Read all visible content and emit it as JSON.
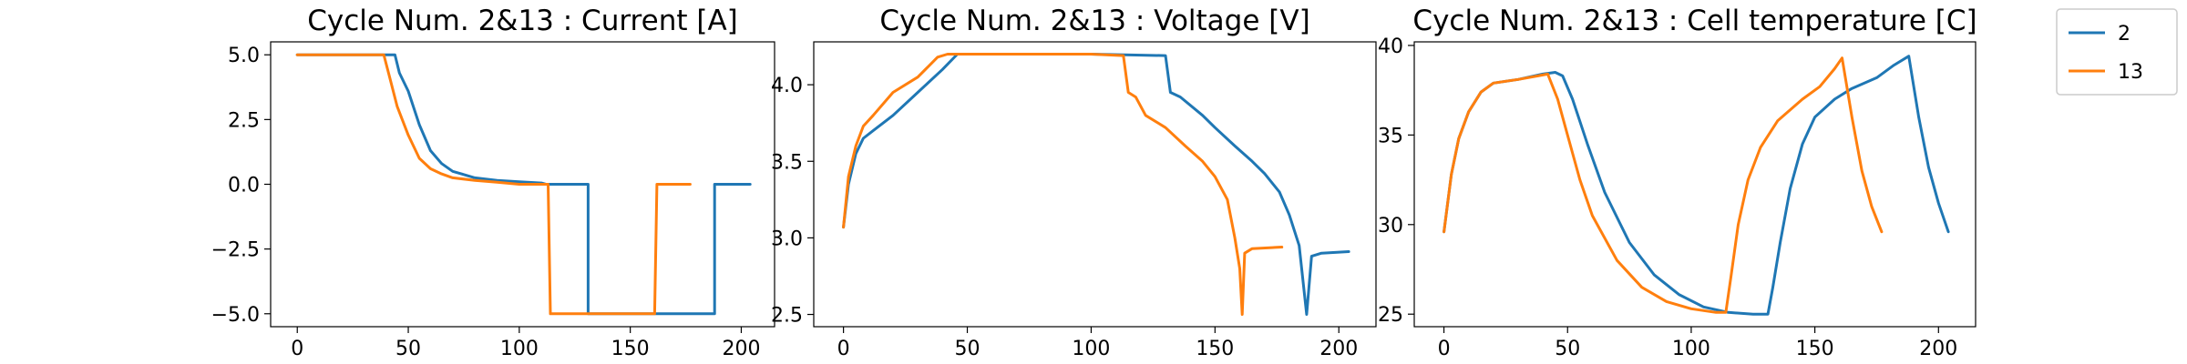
{
  "legend": {
    "items": [
      {
        "label": "2",
        "color": "#1f77b4"
      },
      {
        "label": "13",
        "color": "#ff7f0e"
      }
    ]
  },
  "chart_data": [
    {
      "type": "line",
      "title": "Cycle Num. 2&13 : Current [A]",
      "xlim": [
        -12,
        215
      ],
      "ylim": [
        -5.5,
        5.5
      ],
      "xticks": [
        0,
        50,
        100,
        150,
        200
      ],
      "yticks": [
        5.0,
        2.5,
        0.0,
        -2.5,
        -5.0
      ],
      "ytick_labels": [
        "5.0",
        "2.5",
        "0.0",
        "−2.5",
        "−5.0"
      ],
      "xtick_labels": [
        "0",
        "50",
        "100",
        "150",
        "200"
      ],
      "series": [
        {
          "name": "2",
          "color": "#1f77b4",
          "points": [
            [
              0,
              5.0
            ],
            [
              44,
              5.0
            ],
            [
              46,
              4.3
            ],
            [
              50,
              3.6
            ],
            [
              55,
              2.3
            ],
            [
              60,
              1.3
            ],
            [
              65,
              0.8
            ],
            [
              70,
              0.5
            ],
            [
              80,
              0.25
            ],
            [
              90,
              0.15
            ],
            [
              100,
              0.1
            ],
            [
              110,
              0.05
            ],
            [
              112,
              0.0
            ],
            [
              131,
              0.0
            ],
            [
              131,
              -5.0
            ],
            [
              188,
              -5.0
            ],
            [
              188,
              0.0
            ],
            [
              204,
              0.0
            ]
          ]
        },
        {
          "name": "13",
          "color": "#ff7f0e",
          "points": [
            [
              0,
              5.0
            ],
            [
              39,
              5.0
            ],
            [
              42,
              4.0
            ],
            [
              45,
              3.0
            ],
            [
              50,
              1.9
            ],
            [
              55,
              1.0
            ],
            [
              60,
              0.6
            ],
            [
              65,
              0.4
            ],
            [
              70,
              0.25
            ],
            [
              80,
              0.15
            ],
            [
              90,
              0.08
            ],
            [
              100,
              0.0
            ],
            [
              113,
              0.0
            ],
            [
              114,
              -5.0
            ],
            [
              161,
              -5.0
            ],
            [
              162,
              0.0
            ],
            [
              177,
              0.0
            ]
          ]
        }
      ]
    },
    {
      "type": "line",
      "title": "Cycle Num. 2&13 : Voltage [V]",
      "xlim": [
        -12,
        215
      ],
      "ylim": [
        2.42,
        4.28
      ],
      "xticks": [
        0,
        50,
        100,
        150,
        200
      ],
      "yticks": [
        4.0,
        3.5,
        3.0,
        2.5
      ],
      "ytick_labels": [
        "4.0",
        "3.5",
        "3.0",
        "2.5"
      ],
      "xtick_labels": [
        "0",
        "50",
        "100",
        "150",
        "200"
      ],
      "series": [
        {
          "name": "2",
          "color": "#1f77b4",
          "points": [
            [
              0,
              3.07
            ],
            [
              2,
              3.35
            ],
            [
              5,
              3.55
            ],
            [
              8,
              3.65
            ],
            [
              12,
              3.7
            ],
            [
              20,
              3.8
            ],
            [
              30,
              3.95
            ],
            [
              40,
              4.1
            ],
            [
              46,
              4.2
            ],
            [
              100,
              4.2
            ],
            [
              130,
              4.19
            ],
            [
              132,
              3.95
            ],
            [
              136,
              3.92
            ],
            [
              145,
              3.8
            ],
            [
              150,
              3.72
            ],
            [
              158,
              3.6
            ],
            [
              165,
              3.5
            ],
            [
              170,
              3.42
            ],
            [
              176,
              3.3
            ],
            [
              180,
              3.15
            ],
            [
              184,
              2.95
            ],
            [
              187,
              2.5
            ],
            [
              189,
              2.88
            ],
            [
              193,
              2.9
            ],
            [
              204,
              2.91
            ]
          ]
        },
        {
          "name": "13",
          "color": "#ff7f0e",
          "points": [
            [
              0,
              3.07
            ],
            [
              2,
              3.4
            ],
            [
              5,
              3.6
            ],
            [
              8,
              3.73
            ],
            [
              12,
              3.8
            ],
            [
              20,
              3.95
            ],
            [
              30,
              4.05
            ],
            [
              38,
              4.18
            ],
            [
              42,
              4.2
            ],
            [
              100,
              4.2
            ],
            [
              113,
              4.19
            ],
            [
              115,
              3.95
            ],
            [
              118,
              3.92
            ],
            [
              122,
              3.8
            ],
            [
              130,
              3.72
            ],
            [
              138,
              3.6
            ],
            [
              145,
              3.5
            ],
            [
              150,
              3.4
            ],
            [
              155,
              3.25
            ],
            [
              158,
              3.0
            ],
            [
              160,
              2.8
            ],
            [
              161,
              2.5
            ],
            [
              162,
              2.9
            ],
            [
              165,
              2.93
            ],
            [
              177,
              2.94
            ]
          ]
        }
      ]
    },
    {
      "type": "line",
      "title": "Cycle Num. 2&13 : Cell temperature [C]",
      "xlim": [
        -12,
        215
      ],
      "ylim": [
        24.3,
        40.2
      ],
      "xticks": [
        0,
        50,
        100,
        150,
        200
      ],
      "yticks": [
        40,
        35,
        30,
        25
      ],
      "ytick_labels": [
        "40",
        "35",
        "30",
        "25"
      ],
      "xtick_labels": [
        "0",
        "50",
        "100",
        "150",
        "200"
      ],
      "series": [
        {
          "name": "2",
          "color": "#1f77b4",
          "points": [
            [
              0,
              29.6
            ],
            [
              3,
              32.8
            ],
            [
              6,
              34.8
            ],
            [
              10,
              36.3
            ],
            [
              15,
              37.4
            ],
            [
              20,
              37.9
            ],
            [
              30,
              38.1
            ],
            [
              40,
              38.4
            ],
            [
              45,
              38.5
            ],
            [
              48,
              38.3
            ],
            [
              52,
              37.0
            ],
            [
              58,
              34.5
            ],
            [
              65,
              31.8
            ],
            [
              75,
              29.0
            ],
            [
              85,
              27.2
            ],
            [
              95,
              26.1
            ],
            [
              105,
              25.4
            ],
            [
              115,
              25.1
            ],
            [
              125,
              25.0
            ],
            [
              131,
              25.0
            ],
            [
              133,
              26.5
            ],
            [
              136,
              29.0
            ],
            [
              140,
              32.0
            ],
            [
              145,
              34.5
            ],
            [
              150,
              36.0
            ],
            [
              158,
              37.0
            ],
            [
              165,
              37.6
            ],
            [
              175,
              38.2
            ],
            [
              182,
              38.9
            ],
            [
              188,
              39.4
            ],
            [
              192,
              36.0
            ],
            [
              196,
              33.2
            ],
            [
              200,
              31.2
            ],
            [
              204,
              29.6
            ]
          ]
        },
        {
          "name": "13",
          "color": "#ff7f0e",
          "points": [
            [
              0,
              29.6
            ],
            [
              3,
              32.8
            ],
            [
              6,
              34.8
            ],
            [
              10,
              36.3
            ],
            [
              15,
              37.4
            ],
            [
              20,
              37.9
            ],
            [
              30,
              38.1
            ],
            [
              38,
              38.3
            ],
            [
              42,
              38.4
            ],
            [
              46,
              37.0
            ],
            [
              50,
              35.0
            ],
            [
              55,
              32.5
            ],
            [
              60,
              30.5
            ],
            [
              70,
              28.0
            ],
            [
              80,
              26.5
            ],
            [
              90,
              25.7
            ],
            [
              100,
              25.3
            ],
            [
              110,
              25.1
            ],
            [
              114,
              25.1
            ],
            [
              116,
              27.0
            ],
            [
              119,
              30.0
            ],
            [
              123,
              32.5
            ],
            [
              128,
              34.3
            ],
            [
              135,
              35.8
            ],
            [
              145,
              37.0
            ],
            [
              152,
              37.7
            ],
            [
              158,
              38.7
            ],
            [
              161,
              39.3
            ],
            [
              165,
              36.0
            ],
            [
              169,
              33.0
            ],
            [
              173,
              31.0
            ],
            [
              177,
              29.6
            ]
          ]
        }
      ]
    }
  ]
}
